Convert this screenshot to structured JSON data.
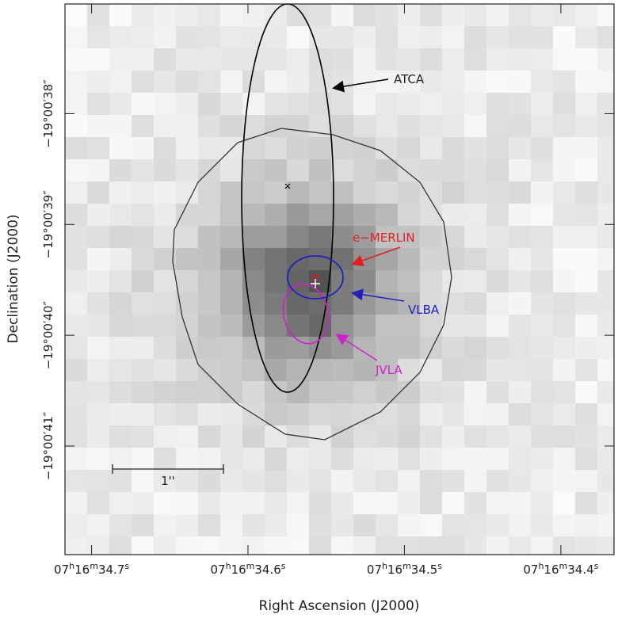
{
  "chart_data": {
    "type": "image",
    "xlabel": "Right Ascension (J2000)",
    "ylabel": "Declination (J2000)",
    "xlim": [
      34.717,
      34.366
    ],
    "ylim": [
      37.01,
      41.98
    ],
    "xticks": [
      {
        "value": 34.7,
        "label": "07h16m34.7s"
      },
      {
        "value": 34.6,
        "label": "07h16m34.6s"
      },
      {
        "value": 34.5,
        "label": "07h16m34.5s"
      },
      {
        "value": 34.4,
        "label": "07h16m34.4s"
      }
    ],
    "yticks": [
      {
        "value": 38,
        "label": "−19°00′38″"
      },
      {
        "value": 39,
        "label": "−19°00′39″"
      },
      {
        "value": 40,
        "label": "−19°00′40″"
      },
      {
        "value": 41,
        "label": "−19°00′41″"
      }
    ],
    "annotations": [
      "ATCA",
      "e−MERLIN",
      "VLBA",
      "JVLA"
    ],
    "scale_bar": "1''"
  }
}
